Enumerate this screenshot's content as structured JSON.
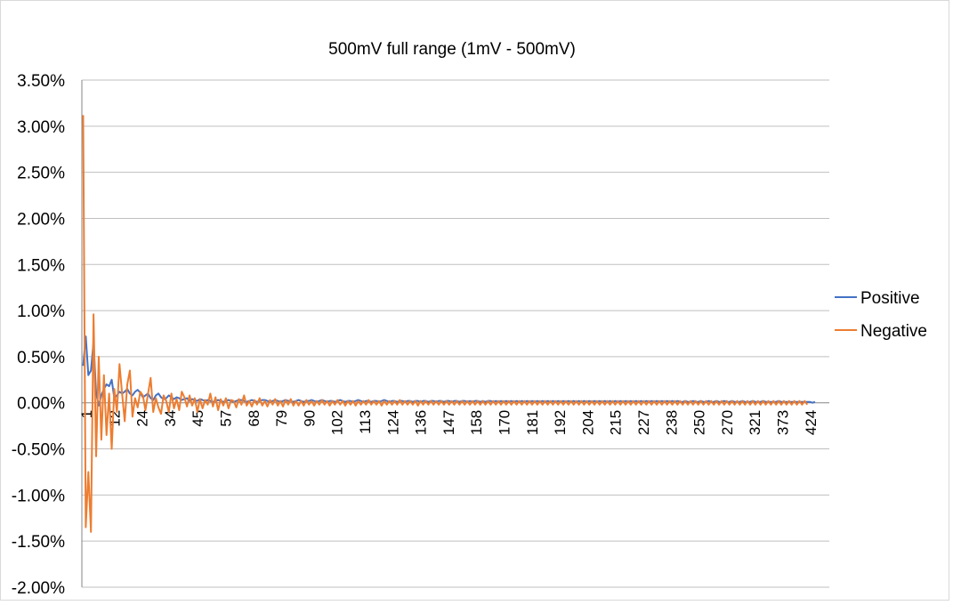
{
  "chart_data": {
    "type": "line",
    "title": "500mV full range (1mV - 500mV)",
    "xlabel": "",
    "ylabel": "",
    "ylim": [
      -0.02,
      0.035
    ],
    "y_tick_step": 0.005,
    "y_tick_labels": [
      "3.50%",
      "3.00%",
      "2.50%",
      "2.00%",
      "1.50%",
      "1.00%",
      "0.50%",
      "0.00%",
      "-0.50%",
      "-1.00%",
      "-1.50%",
      "-2.00%"
    ],
    "x_tick_labels": [
      "1",
      "12",
      "24",
      "34",
      "45",
      "57",
      "68",
      "79",
      "90",
      "102",
      "113",
      "124",
      "136",
      "147",
      "158",
      "170",
      "181",
      "192",
      "204",
      "215",
      "227",
      "238",
      "250",
      "270",
      "321",
      "373",
      "424"
    ],
    "point_count": 288,
    "grid": true,
    "legend_position": "right",
    "colors": {
      "Positive": "#4472c4",
      "Negative": "#ed7d31",
      "grid": "#bfbfbf",
      "axis": "#868686"
    },
    "series": [
      {
        "name": "Positive",
        "values": [
          0.004,
          0.0072,
          0.003,
          0.0035,
          0.0066,
          0.001,
          -0.0003,
          0.0008,
          0.0015,
          0.002,
          0.0018,
          0.0025,
          0.0005,
          0.0008,
          0.0012,
          0.001,
          0.0012,
          0.0015,
          0.001,
          0.0008,
          0.0012,
          0.0014,
          0.0011,
          0.0006,
          0.0008,
          0.001,
          0.0005,
          0.0003,
          0.0008,
          0.001,
          0.0006,
          0.0004,
          0.0005,
          0.0008,
          0.0006,
          0.0004,
          0.0006,
          0.0005,
          0.0003,
          0.0004,
          0.0005,
          0.0002,
          0.0004,
          0.0003,
          0.0002,
          0.0004,
          0.0003,
          0.0002,
          0.0003,
          0.0002,
          0.0001,
          0.0002,
          0.0003,
          0.0002,
          0.0001,
          0.0002,
          0.0003,
          0.0002,
          0.0001,
          0.0002,
          0.0003,
          0.0003,
          0.0002,
          0.0001,
          0.0002,
          0.0003,
          0.0002,
          0.0001,
          0.0002,
          0.0003,
          0.0003,
          0.0002,
          0.0001,
          0.0002,
          0.0003,
          0.0002,
          0.0001,
          0.0002,
          0.0003,
          0.0002,
          0.0002,
          0.0001,
          0.0002,
          0.0003,
          0.0002,
          0.0001,
          0.0002,
          0.0002,
          0.0003,
          0.0002,
          0.0001,
          0.0002,
          0.0003,
          0.0002,
          0.0001,
          0.0002,
          0.0002,
          0.0001,
          0.0002,
          0.0003,
          0.0002,
          0.0001,
          0.0002,
          0.0002,
          0.0001,
          0.0002,
          0.0003,
          0.0002,
          0.0001,
          0.0002,
          0.0002,
          0.0001,
          0.0002,
          0.0002,
          0.0001,
          0.0002,
          0.0003,
          0.0002,
          0.0001,
          0.0002,
          0.0002,
          0.0001,
          0.0002,
          0.0002,
          0.0001,
          0.0002,
          0.0002,
          0.0001,
          0.0002,
          0.0002,
          0.0001,
          0.0002,
          0.0002,
          0.0001,
          0.0002,
          0.0002,
          0.0001,
          0.0002,
          0.0002,
          0.0001,
          0.0002,
          0.0002,
          0.0001,
          0.0002,
          0.0002,
          0.0001,
          0.0002,
          0.0002,
          0.0001,
          0.0002,
          0.0001,
          0.0002,
          0.0002,
          0.0001,
          0.0002,
          0.0001,
          0.0002,
          0.0002,
          0.0001,
          0.0002,
          0.0001,
          0.0002,
          0.0001,
          0.0002,
          0.0001,
          0.0002,
          0.0001,
          0.0002,
          0.0001,
          0.0002,
          0.0001,
          0.0002,
          0.0001,
          0.0002,
          0.0001,
          0.0002,
          0.0001,
          0.0002,
          0.0001,
          0.0002,
          0.0001,
          0.0002,
          0.0001,
          0.0002,
          0.0001,
          0.0002,
          0.0001,
          0.0002,
          0.0001,
          0.0002,
          0.0001,
          0.0002,
          0.0001,
          0.0002,
          0.0001,
          0.0002,
          0.0001,
          0.0002,
          0.0001,
          0.0002,
          0.0001,
          0.0002,
          0.0001,
          0.0002,
          0.0001,
          0.0002,
          0.0001,
          0.0002,
          0.0001,
          0.0002,
          0.0001,
          0.0002,
          0.0001,
          0.0002,
          0.0001,
          0.0002,
          0.0001,
          0.0002,
          0.0001,
          0.0002,
          0.0001,
          0.0002,
          0.0001,
          0.0002,
          0.0001,
          0.0002,
          0.0001,
          0.0002,
          0.0001,
          0.0002,
          0.0001,
          0.0001,
          0.0002,
          0.0001,
          0.0001,
          0.0002,
          0.0001,
          0.0001,
          0.0002,
          0.0001,
          0.0001,
          0.0002,
          0.0001,
          0.0001,
          0.0002,
          0.0001,
          0.0001,
          0.0002,
          0.0001,
          0.0001,
          0.0002,
          0.0001,
          0.0001,
          0.0001,
          0.0002,
          0.0001,
          0.0001,
          0.0001,
          0.0002,
          0.0001,
          0.0001,
          0.0001,
          0.0002,
          0.0001,
          0.0001,
          0.0001,
          0.0001,
          0.0001,
          0.0002,
          0.0001,
          0.0001,
          0.0001,
          0.0001,
          0.0001,
          0.0001,
          0.0001,
          0.0001,
          0.0001,
          0.0001,
          0.0001,
          0.0001,
          0.0,
          0.0001
        ]
      },
      {
        "name": "Negative",
        "values": [
          0.0312,
          -0.0135,
          -0.0075,
          -0.014,
          0.0096,
          -0.0058,
          0.005,
          -0.004,
          0.003,
          -0.0035,
          0.001,
          -0.005,
          0.0015,
          -0.001,
          0.0042,
          0.001,
          -0.002,
          0.002,
          0.0035,
          -0.0015,
          0.0005,
          -0.0005,
          0.0012,
          0.0008,
          -0.0008,
          0.001,
          0.0027,
          -0.001,
          0.0005,
          -0.0005,
          -0.0012,
          0.0008,
          0.0002,
          -0.001,
          0.001,
          -0.0006,
          0.0004,
          -0.0008,
          0.0012,
          0.0006,
          -0.0004,
          0.0008,
          -0.0003,
          0.0005,
          -0.001,
          0.0004,
          -0.0006,
          0.0003,
          -0.0002,
          0.001,
          -0.0004,
          0.0006,
          -0.0008,
          0.0004,
          -0.0003,
          0.0005,
          -0.0006,
          0.0003,
          0.0002,
          -0.0005,
          0.0004,
          -0.0002,
          0.0008,
          -0.0003,
          0.0002,
          -0.0004,
          0.0003,
          -0.0002,
          0.0005,
          -0.0003,
          0.0002,
          -0.0004,
          0.0003,
          -0.0002,
          0.0004,
          -0.0003,
          0.0002,
          -0.0004,
          0.0003,
          -0.0002,
          0.0004,
          -0.0003,
          0.0002,
          -0.0003,
          0.0002,
          -0.0003,
          0.0003,
          -0.0002,
          0.0002,
          -0.0003,
          0.0002,
          -0.0002,
          0.0003,
          -0.0002,
          0.0002,
          -0.0003,
          0.0002,
          -0.0002,
          0.0003,
          -0.0002,
          0.0002,
          -0.0003,
          0.0002,
          -0.0002,
          0.0002,
          -0.0003,
          0.0002,
          -0.0002,
          0.0002,
          -0.0002,
          0.0003,
          -0.0002,
          0.0002,
          -0.0002,
          0.0002,
          -0.0003,
          0.0002,
          -0.0002,
          0.0002,
          -0.0002,
          0.0002,
          -0.0002,
          0.0003,
          -0.0002,
          0.0002,
          -0.0002,
          0.0002,
          -0.0002,
          0.0002,
          -0.0003,
          0.0002,
          -0.0002,
          0.0002,
          -0.0002,
          0.0002,
          -0.0002,
          0.0002,
          -0.0002,
          0.0002,
          -0.0002,
          0.0002,
          -0.0002,
          0.0002,
          -0.0002,
          0.0002,
          -0.0002,
          0.0002,
          -0.0002,
          0.0002,
          -0.0002,
          0.0002,
          -0.0002,
          0.0002,
          -0.0002,
          0.0002,
          -0.0002,
          0.0002,
          -0.0002,
          0.0002,
          -0.0002,
          0.0002,
          -0.0002,
          0.0002,
          -0.0002,
          0.0002,
          -0.0002,
          0.0002,
          -0.0002,
          0.0002,
          -0.0002,
          0.0002,
          -0.0002,
          0.0002,
          -0.0002,
          0.0002,
          -0.0002,
          0.0002,
          -0.0002,
          0.0002,
          -0.0002,
          0.0002,
          -0.0002,
          0.0002,
          -0.0002,
          0.0002,
          -0.0002,
          0.0002,
          -0.0002,
          0.0002,
          -0.0002,
          0.0002,
          -0.0002,
          0.0002,
          -0.0002,
          0.0002,
          -0.0002,
          0.0002,
          -0.0002,
          0.0002,
          -0.0002,
          0.0002,
          -0.0002,
          0.0002,
          -0.0002,
          0.0002,
          -0.0002,
          0.0002,
          -0.0002,
          0.0002,
          -0.0002,
          0.0002,
          -0.0002,
          0.0002,
          -0.0002,
          0.0002,
          -0.0002,
          0.0002,
          -0.0002,
          0.0002,
          -0.0002,
          0.0002,
          -0.0002,
          0.0002,
          -0.0002,
          0.0002,
          -0.0002,
          0.0002,
          -0.0002,
          0.0002,
          -0.0002,
          0.0002,
          -0.0002,
          0.0002,
          -0.0002,
          0.0002,
          -0.0002,
          0.0002,
          -0.0002,
          0.0002,
          -0.0002,
          0.0002,
          -0.0002,
          0.0002,
          -0.0002,
          0.0002,
          -0.0002,
          0.0002,
          -0.0002,
          0.0002,
          -0.0002,
          0.0002,
          -0.0002,
          0.0002,
          -0.0002,
          0.0002,
          -0.0002,
          0.0002,
          -0.0002,
          0.0002,
          -0.0002,
          0.0002,
          -0.0002,
          0.0002,
          -0.0002,
          0.0002,
          -0.0002,
          0.0002,
          -0.0002,
          0.0002,
          -0.0002,
          0.0002,
          -0.0002,
          0.0002,
          -0.0002,
          0.0002,
          -0.0002,
          0.0002,
          -0.0002,
          0.0002,
          -0.0002
        ]
      }
    ]
  }
}
